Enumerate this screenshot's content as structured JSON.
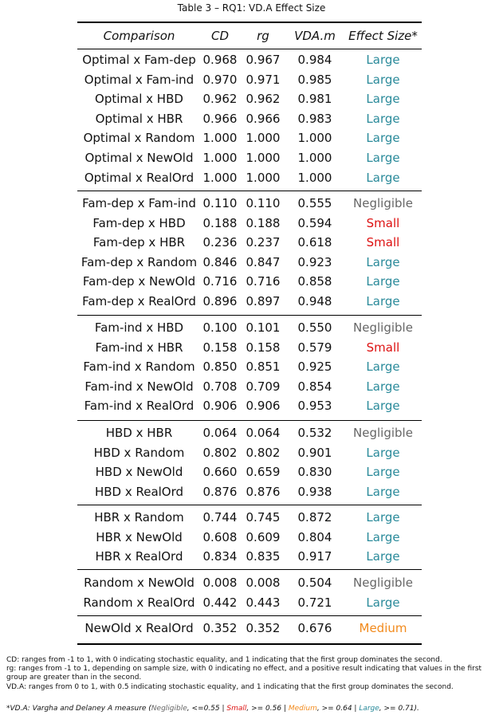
{
  "caption": "Table 3 – RQ1: VD.A Effect Size",
  "colors": {
    "Large": "#2a8a9a",
    "Small": "#dd1111",
    "Medium": "#f28a1c",
    "Negligible": "#666666",
    "text": "#111111"
  },
  "headers": [
    "Comparison",
    "CD",
    "rg",
    "VDA.m",
    "Effect Size*"
  ],
  "groups": [
    {
      "rows": [
        [
          "Optimal x Fam-dep",
          "0.968",
          "0.967",
          "0.984",
          "Large"
        ],
        [
          "Optimal x Fam-ind",
          "0.970",
          "0.971",
          "0.985",
          "Large"
        ],
        [
          "Optimal x HBD",
          "0.962",
          "0.962",
          "0.981",
          "Large"
        ],
        [
          "Optimal x HBR",
          "0.966",
          "0.966",
          "0.983",
          "Large"
        ],
        [
          "Optimal x Random",
          "1.000",
          "1.000",
          "1.000",
          "Large"
        ],
        [
          "Optimal x NewOld",
          "1.000",
          "1.000",
          "1.000",
          "Large"
        ],
        [
          "Optimal x RealOrd",
          "1.000",
          "1.000",
          "1.000",
          "Large"
        ]
      ]
    },
    {
      "rows": [
        [
          "Fam-dep x Fam-ind",
          "0.110",
          "0.110",
          "0.555",
          "Negligible"
        ],
        [
          "Fam-dep x HBD",
          "0.188",
          "0.188",
          "0.594",
          "Small"
        ],
        [
          "Fam-dep x HBR",
          "0.236",
          "0.237",
          "0.618",
          "Small"
        ],
        [
          "Fam-dep x Random",
          "0.846",
          "0.847",
          "0.923",
          "Large"
        ],
        [
          "Fam-dep x NewOld",
          "0.716",
          "0.716",
          "0.858",
          "Large"
        ],
        [
          "Fam-dep x RealOrd",
          "0.896",
          "0.897",
          "0.948",
          "Large"
        ]
      ]
    },
    {
      "rows": [
        [
          "Fam-ind x HBD",
          "0.100",
          "0.101",
          "0.550",
          "Negligible"
        ],
        [
          "Fam-ind x HBR",
          "0.158",
          "0.158",
          "0.579",
          "Small"
        ],
        [
          "Fam-ind x Random",
          "0.850",
          "0.851",
          "0.925",
          "Large"
        ],
        [
          "Fam-ind x NewOld",
          "0.708",
          "0.709",
          "0.854",
          "Large"
        ],
        [
          "Fam-ind x RealOrd",
          "0.906",
          "0.906",
          "0.953",
          "Large"
        ]
      ]
    },
    {
      "rows": [
        [
          "HBD x HBR",
          "0.064",
          "0.064",
          "0.532",
          "Negligible"
        ],
        [
          "HBD x Random",
          "0.802",
          "0.802",
          "0.901",
          "Large"
        ],
        [
          "HBD x NewOld",
          "0.660",
          "0.659",
          "0.830",
          "Large"
        ],
        [
          "HBD x RealOrd",
          "0.876",
          "0.876",
          "0.938",
          "Large"
        ]
      ]
    },
    {
      "rows": [
        [
          "HBR x Random",
          "0.744",
          "0.745",
          "0.872",
          "Large"
        ],
        [
          "HBR x NewOld",
          "0.608",
          "0.609",
          "0.804",
          "Large"
        ],
        [
          "HBR x RealOrd",
          "0.834",
          "0.835",
          "0.917",
          "Large"
        ]
      ]
    },
    {
      "rows": [
        [
          "Random x NewOld",
          "0.008",
          "0.008",
          "0.504",
          "Negligible"
        ],
        [
          "Random x RealOrd",
          "0.442",
          "0.443",
          "0.721",
          "Large"
        ]
      ]
    },
    {
      "rows": [
        [
          "NewOld x RealOrd",
          "0.352",
          "0.352",
          "0.676",
          "Medium"
        ]
      ]
    }
  ],
  "notes": [
    "CD: ranges from -1 to 1, with 0 indicating stochastic equality, and 1 indicating that the first group dominates the second.",
    "rg: ranges from -1 to 1, depending on sample size, with 0 indicating no effect, and a positive result indicating that values in the first group are greater than in the second.",
    "VD.A: ranges from 0 to 1, with 0.5 indicating stochastic equality, and 1 indicating that the first group dominates the second."
  ],
  "footnote": {
    "prefix": "*VD.A: Vargha and Delaney A measure (",
    "negligible": "Negligible",
    "negligible_rule": ", <=0.55 | ",
    "small": "Small",
    "small_rule": ", >= 0.56 | ",
    "medium": "Medium",
    "medium_rule": ", >= 0.64 | ",
    "large": "Large",
    "large_rule": ", >= 0.71)."
  }
}
